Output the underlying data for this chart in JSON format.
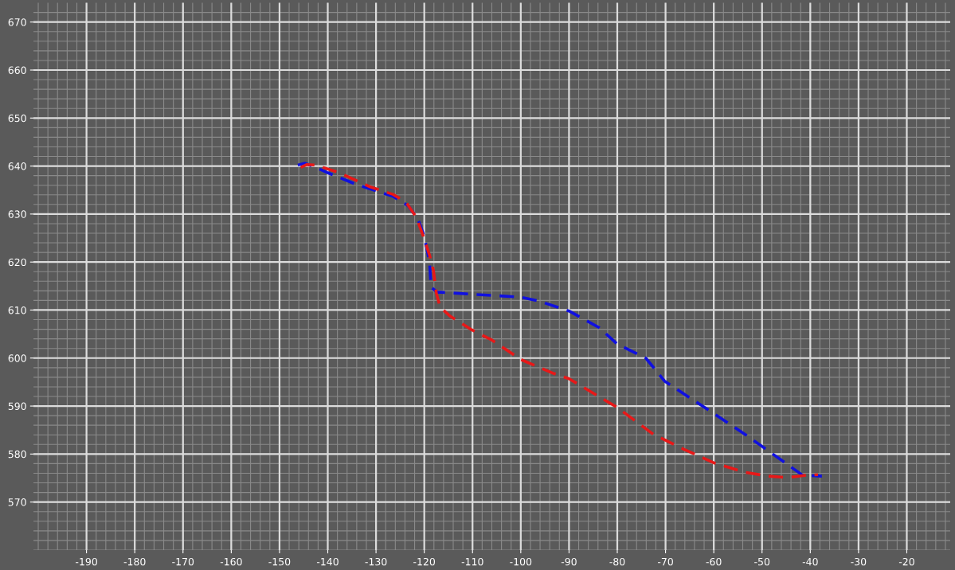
{
  "chart_data": {
    "type": "line",
    "xlim": [
      -201,
      -11
    ],
    "ylim": [
      560,
      674
    ],
    "xticks": [
      -190,
      -180,
      -170,
      -160,
      -150,
      -140,
      -130,
      -120,
      -110,
      -100,
      -90,
      -80,
      -70,
      -60,
      -50,
      -40,
      -30,
      -20
    ],
    "yticks": [
      570,
      580,
      590,
      600,
      610,
      620,
      630,
      640,
      650,
      660,
      670
    ],
    "grid": true,
    "line_style": "dashed",
    "marker": "none",
    "series": [
      {
        "color": "#1010e0",
        "x": [
          -146.2,
          -144.8,
          -142.4,
          -140,
          -134.4,
          -130.2,
          -126.5,
          -123.3,
          -121.3,
          -120.3,
          -119.5,
          -118.9,
          -118.6,
          -117.3,
          -116.5,
          -110.2,
          -100,
          -96.3,
          -90,
          -83.7,
          -80,
          -74.1,
          -70.2,
          -61.9,
          -53.5,
          -44,
          -41.6,
          -37.6
        ],
        "values": [
          640.2,
          640.6,
          639.7,
          638.6,
          636.3,
          634.9,
          633.7,
          631.7,
          628.9,
          626.2,
          623,
          619.8,
          614.8,
          613.7,
          613.7,
          613.3,
          612.7,
          611.9,
          609.8,
          606.3,
          602.9,
          600,
          595.2,
          589.7,
          584.1,
          577.3,
          575.6,
          575.4
        ]
      },
      {
        "color": "#e81818",
        "x": [
          -145.6,
          -144.4,
          -142.4,
          -137.6,
          -131.3,
          -126.5,
          -123.8,
          -121.7,
          -120.2,
          -118.9,
          -118.1,
          -117.5,
          -116.7,
          -114.6,
          -110.2,
          -105.9,
          -100,
          -93.2,
          -90,
          -80,
          -72.5,
          -66.2,
          -59.8,
          -53.5,
          -48.7,
          -44.8,
          -40.8,
          -38.4
        ],
        "values": [
          639.7,
          640.3,
          640.2,
          638.6,
          635.7,
          634.1,
          632.5,
          629.4,
          625.4,
          621.4,
          618.3,
          613.5,
          610.6,
          608.7,
          605.9,
          603.7,
          599.7,
          596.8,
          595.7,
          589.7,
          584.1,
          581,
          578.1,
          576.2,
          575.4,
          575.1,
          575.6,
          575.7
        ]
      }
    ]
  }
}
